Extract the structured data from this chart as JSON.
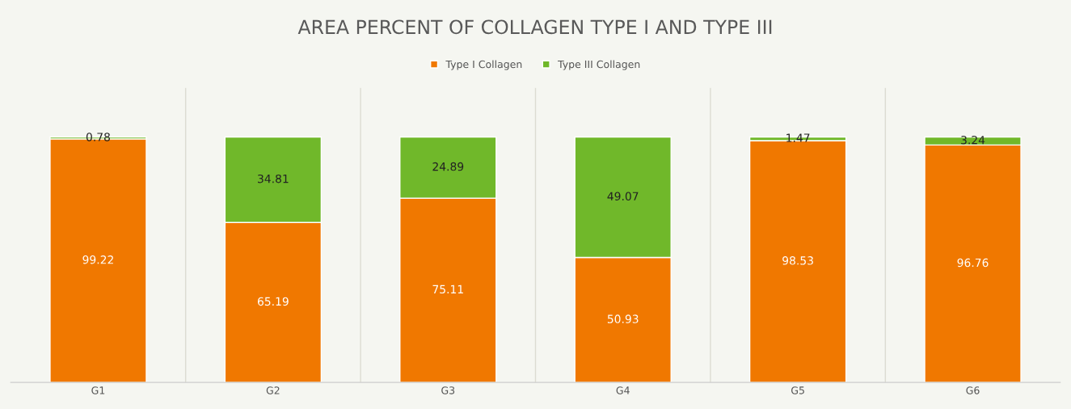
{
  "chart_data": {
    "type": "bar",
    "title": "AREA PERCENT OF COLLAGEN TYPE I AND TYPE III",
    "categories": [
      "G1",
      "G2",
      "G3",
      "G4",
      "G5",
      "G6"
    ],
    "series": [
      {
        "name": "Type I Collagen",
        "color": "#f07800",
        "values": [
          99.22,
          65.19,
          75.11,
          50.93,
          98.53,
          96.76
        ]
      },
      {
        "name": "Type III Collagen",
        "color": "#70b82a",
        "values": [
          0.78,
          34.81,
          24.89,
          49.07,
          1.47,
          3.24
        ]
      }
    ],
    "stacked": true,
    "data_labels": true,
    "ylim": [
      0,
      120
    ],
    "tick_labels": "x",
    "legend": "top"
  }
}
